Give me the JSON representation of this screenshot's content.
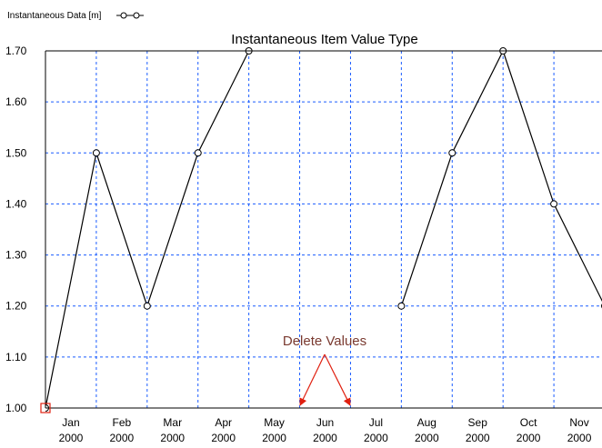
{
  "chart_data": {
    "type": "line",
    "title": "Instantaneous Item Value Type",
    "x": [
      "2000-01",
      "2000-02",
      "2000-03",
      "2000-04",
      "2000-05",
      "2000-06",
      "2000-07",
      "2000-08",
      "2000-09",
      "2000-10",
      "2000-11",
      "2000-12"
    ],
    "series": [
      {
        "name": "Instantaneous Data [m]",
        "color": "#000000",
        "values": [
          1.0,
          1.5,
          1.2,
          1.5,
          1.7,
          null,
          null,
          1.2,
          1.5,
          1.7,
          1.4,
          1.2
        ]
      }
    ],
    "xlim": [
      "2000-01",
      "2000-12"
    ],
    "xtick_labels": [
      {
        "month": "Jan",
        "year": "2000"
      },
      {
        "month": "Feb",
        "year": "2000"
      },
      {
        "month": "Mar",
        "year": "2000"
      },
      {
        "month": "Apr",
        "year": "2000"
      },
      {
        "month": "May",
        "year": "2000"
      },
      {
        "month": "Jun",
        "year": "2000"
      },
      {
        "month": "Jul",
        "year": "2000"
      },
      {
        "month": "Aug",
        "year": "2000"
      },
      {
        "month": "Sep",
        "year": "2000"
      },
      {
        "month": "Oct",
        "year": "2000"
      },
      {
        "month": "Nov",
        "year": "2000"
      }
    ],
    "ylim": [
      1.0,
      1.7
    ],
    "yticks": [
      {
        "value": 1.0,
        "label": "1.00"
      },
      {
        "value": 1.1,
        "label": "1.10"
      },
      {
        "value": 1.2,
        "label": "1.20"
      },
      {
        "value": 1.3,
        "label": "1.30"
      },
      {
        "value": 1.4,
        "label": "1.40"
      },
      {
        "value": 1.5,
        "label": "1.50"
      },
      {
        "value": 1.6,
        "label": "1.60"
      },
      {
        "value": 1.7,
        "label": "1.70"
      }
    ],
    "grid": true,
    "grid_color": "#1a5cff",
    "legend": "top-left",
    "annotation": "Delete Values"
  }
}
